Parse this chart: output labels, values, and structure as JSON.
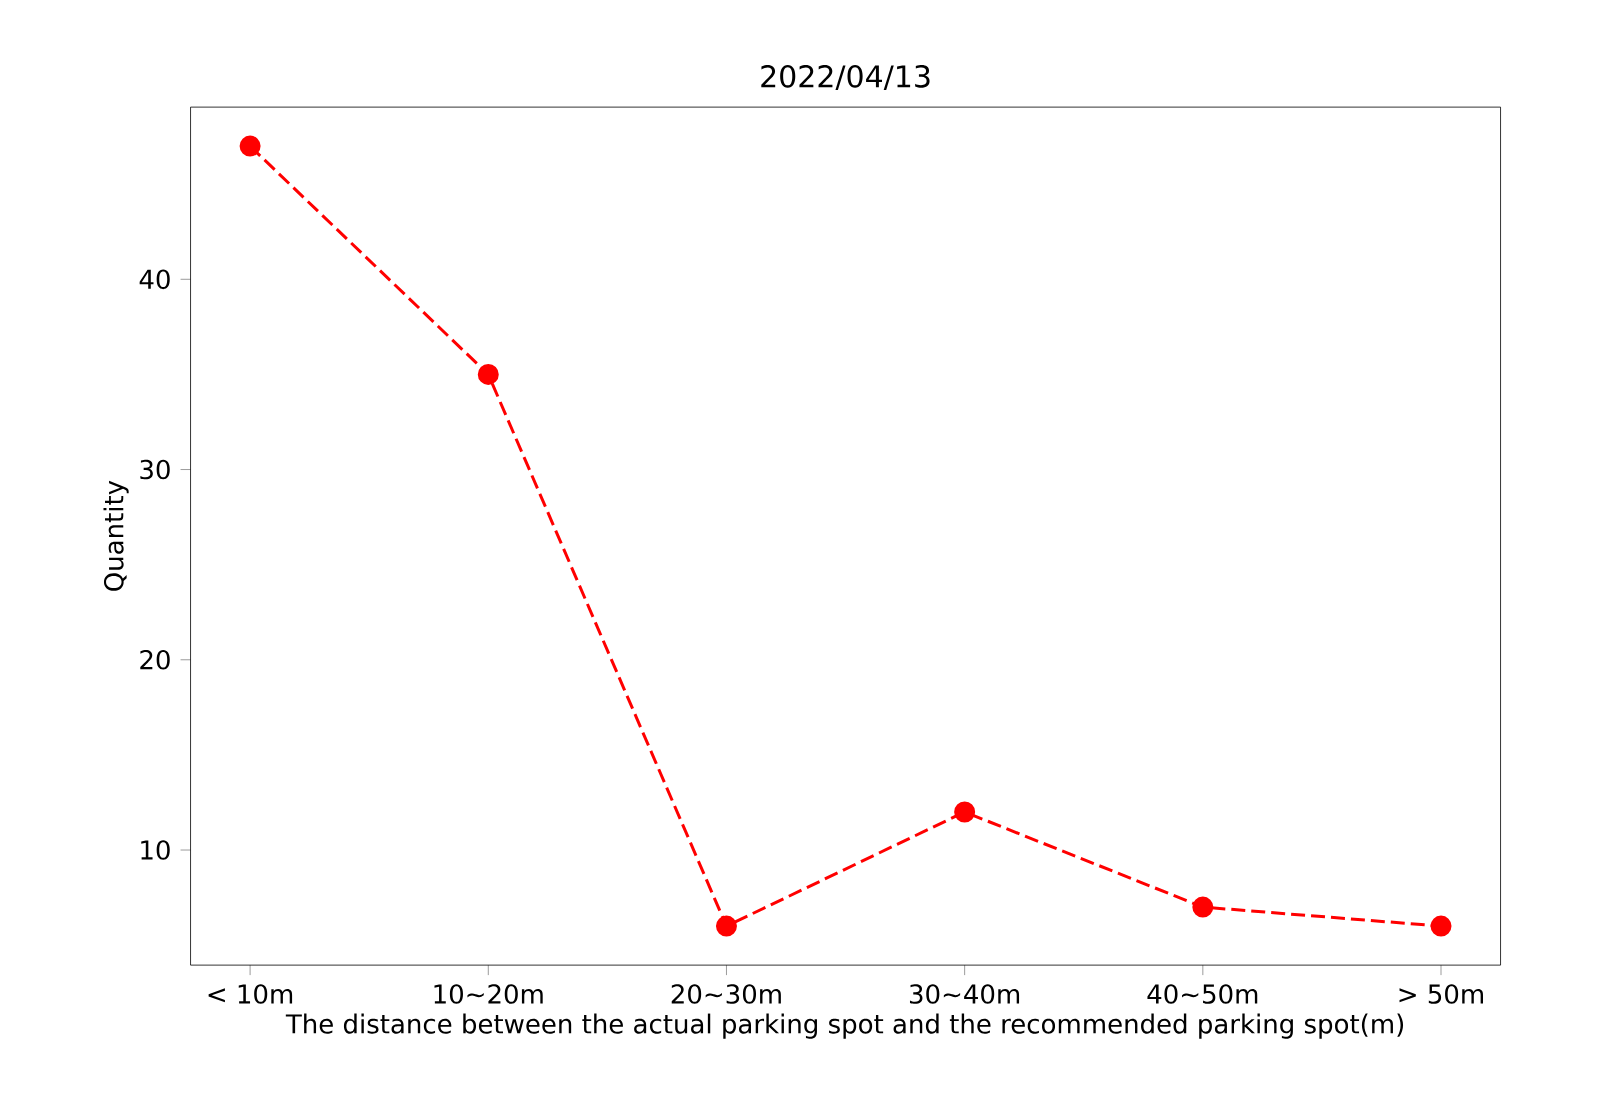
{
  "chart_data": {
    "type": "line",
    "title": "2022/04/13",
    "xlabel": "The distance between the actual parking spot and the recommended parking spot(m)",
    "ylabel": "Quantity",
    "categories": [
      "< 10m",
      "10~20m",
      "20~30m",
      "30~40m",
      "40~50m",
      "> 50m"
    ],
    "series": [
      {
        "color": "#ff0000",
        "values": [
          47,
          35,
          6,
          12,
          7,
          6
        ]
      }
    ],
    "ylim": [
      3.95,
      49.05
    ],
    "yticks": [
      10,
      20,
      30,
      40
    ],
    "marker": "circle",
    "line_style": "dashed",
    "grid": false
  }
}
